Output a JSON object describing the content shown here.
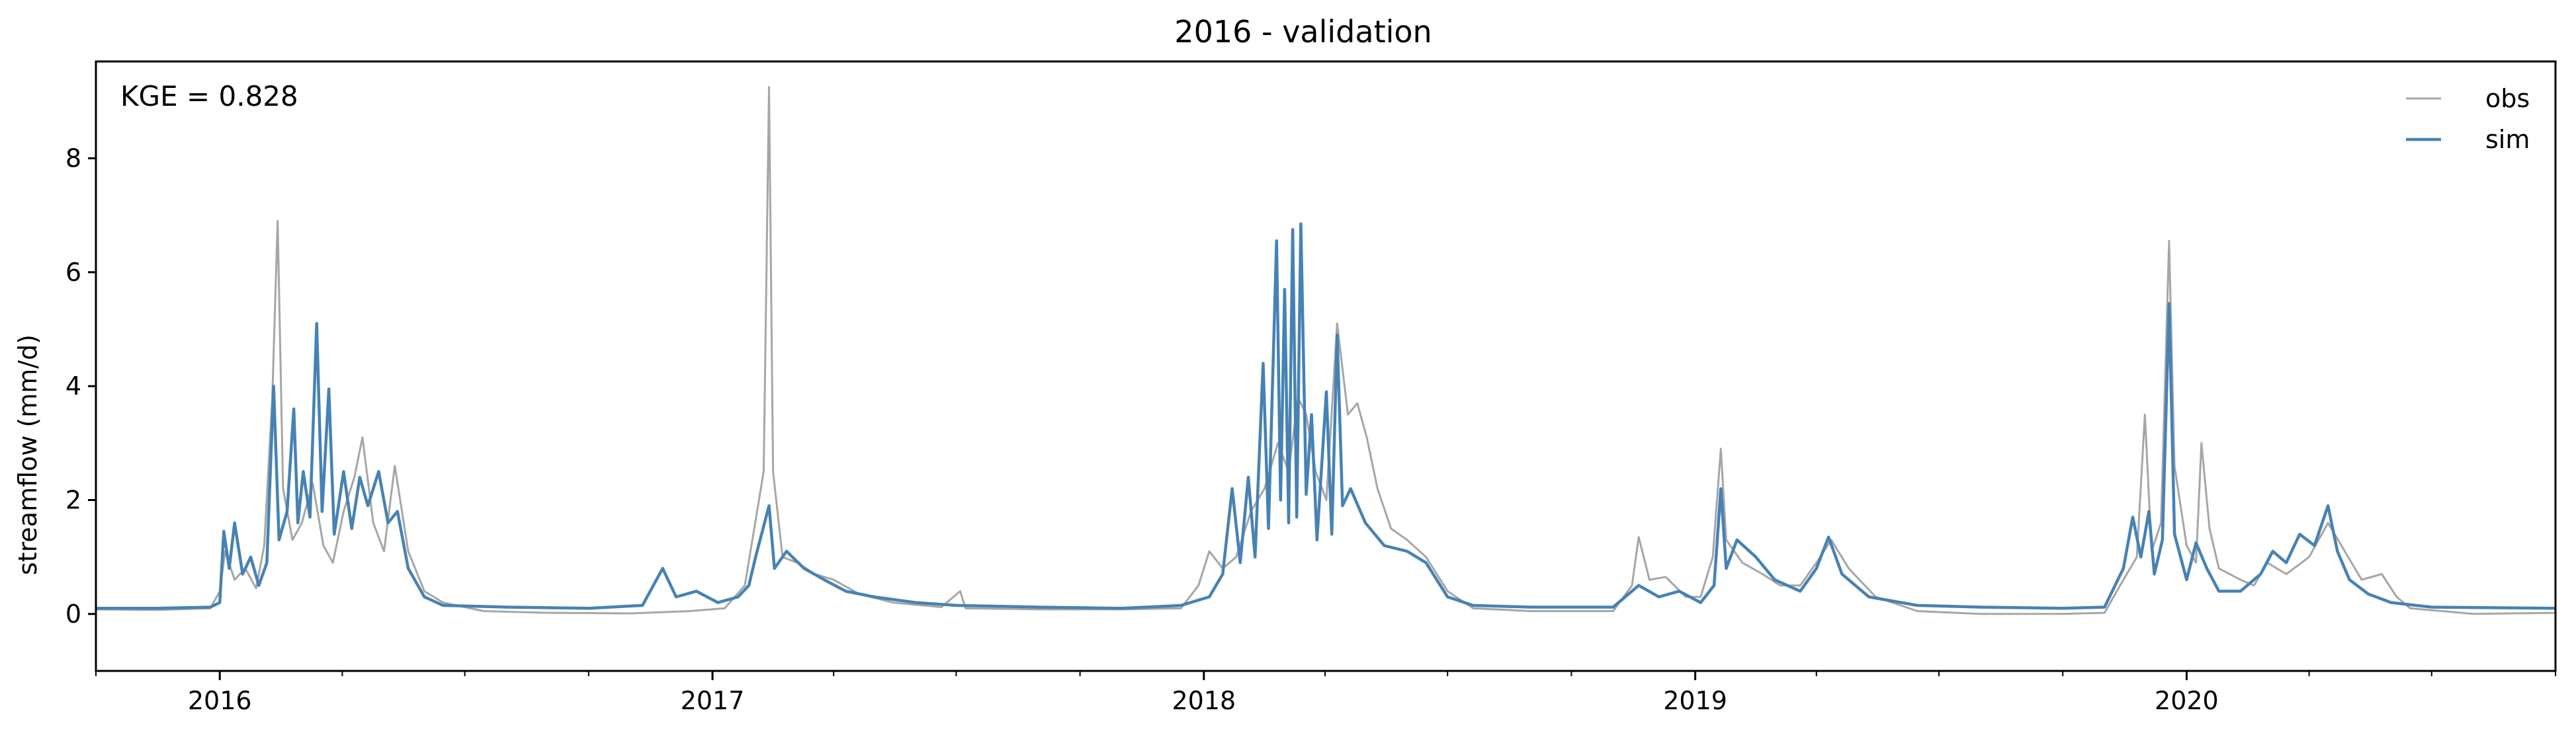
{
  "chart_data": {
    "type": "line",
    "title": "2016 - validation",
    "xlabel": "",
    "ylabel": "streamflow (mm/d)",
    "xlim": [
      "2015-10-01",
      "2020-10-01"
    ],
    "ylim": [
      -1,
      9.7
    ],
    "yticks": [
      0,
      2,
      4,
      6,
      8
    ],
    "xticks": [
      {
        "date": "2016-01-01",
        "label": "2016"
      },
      {
        "date": "2017-01-01",
        "label": "2017"
      },
      {
        "date": "2018-01-01",
        "label": "2018"
      },
      {
        "date": "2019-01-01",
        "label": "2019"
      },
      {
        "date": "2020-01-01",
        "label": "2020"
      }
    ],
    "minor_xticks": "quarterly",
    "grid": false,
    "legend": {
      "position": "top-right"
    },
    "annotation": "KGE = 0.828",
    "series": [
      {
        "name": "obs",
        "color": "#a6a6a6",
        "points": [
          [
            "2015-10-01",
            0.08
          ],
          [
            "2015-11-15",
            0.07
          ],
          [
            "2015-12-25",
            0.1
          ],
          [
            "2016-01-01",
            0.4
          ],
          [
            "2016-01-05",
            1.1
          ],
          [
            "2016-01-12",
            0.6
          ],
          [
            "2016-01-20",
            0.8
          ],
          [
            "2016-01-28",
            0.45
          ],
          [
            "2016-02-03",
            1.2
          ],
          [
            "2016-02-09",
            3.8
          ],
          [
            "2016-02-13",
            6.9
          ],
          [
            "2016-02-17",
            2.2
          ],
          [
            "2016-02-24",
            1.3
          ],
          [
            "2016-03-02",
            1.6
          ],
          [
            "2016-03-10",
            2.3
          ],
          [
            "2016-03-18",
            1.2
          ],
          [
            "2016-03-25",
            0.9
          ],
          [
            "2016-04-02",
            1.8
          ],
          [
            "2016-04-10",
            2.4
          ],
          [
            "2016-04-16",
            3.1
          ],
          [
            "2016-04-24",
            1.6
          ],
          [
            "2016-05-02",
            1.1
          ],
          [
            "2016-05-10",
            2.6
          ],
          [
            "2016-05-20",
            1.1
          ],
          [
            "2016-06-01",
            0.4
          ],
          [
            "2016-06-15",
            0.2
          ],
          [
            "2016-07-15",
            0.05
          ],
          [
            "2016-09-01",
            0.02
          ],
          [
            "2016-11-01",
            0.01
          ],
          [
            "2016-12-15",
            0.05
          ],
          [
            "2017-01-10",
            0.1
          ],
          [
            "2017-01-25",
            0.5
          ],
          [
            "2017-02-08",
            2.5
          ],
          [
            "2017-02-12",
            9.25
          ],
          [
            "2017-02-15",
            2.5
          ],
          [
            "2017-02-22",
            1.0
          ],
          [
            "2017-03-05",
            0.9
          ],
          [
            "2017-03-18",
            0.7
          ],
          [
            "2017-04-01",
            0.6
          ],
          [
            "2017-04-20",
            0.35
          ],
          [
            "2017-05-15",
            0.2
          ],
          [
            "2017-06-20",
            0.12
          ],
          [
            "2017-07-04",
            0.4
          ],
          [
            "2017-07-08",
            0.1
          ],
          [
            "2017-09-01",
            0.08
          ],
          [
            "2017-11-01",
            0.08
          ],
          [
            "2017-12-15",
            0.1
          ],
          [
            "2017-12-28",
            0.5
          ],
          [
            "2018-01-05",
            1.1
          ],
          [
            "2018-01-15",
            0.8
          ],
          [
            "2018-01-25",
            1.0
          ],
          [
            "2018-02-05",
            1.8
          ],
          [
            "2018-02-15",
            2.2
          ],
          [
            "2018-02-25",
            3.0
          ],
          [
            "2018-03-05",
            2.5
          ],
          [
            "2018-03-12",
            3.8
          ],
          [
            "2018-03-18",
            3.5
          ],
          [
            "2018-03-25",
            2.5
          ],
          [
            "2018-04-02",
            2.0
          ],
          [
            "2018-04-10",
            5.1
          ],
          [
            "2018-04-18",
            3.5
          ],
          [
            "2018-04-25",
            3.7
          ],
          [
            "2018-05-02",
            3.1
          ],
          [
            "2018-05-10",
            2.2
          ],
          [
            "2018-05-20",
            1.5
          ],
          [
            "2018-06-01",
            1.3
          ],
          [
            "2018-06-15",
            1.0
          ],
          [
            "2018-07-01",
            0.4
          ],
          [
            "2018-07-20",
            0.1
          ],
          [
            "2018-09-01",
            0.05
          ],
          [
            "2018-11-01",
            0.05
          ],
          [
            "2018-11-15",
            0.5
          ],
          [
            "2018-11-20",
            1.35
          ],
          [
            "2018-11-28",
            0.6
          ],
          [
            "2018-12-10",
            0.65
          ],
          [
            "2018-12-25",
            0.3
          ],
          [
            "2019-01-05",
            0.3
          ],
          [
            "2019-01-14",
            1.0
          ],
          [
            "2019-01-20",
            2.9
          ],
          [
            "2019-01-24",
            1.3
          ],
          [
            "2019-02-05",
            0.9
          ],
          [
            "2019-02-20",
            0.7
          ],
          [
            "2019-03-05",
            0.5
          ],
          [
            "2019-03-20",
            0.5
          ],
          [
            "2019-04-01",
            0.9
          ],
          [
            "2019-04-12",
            1.3
          ],
          [
            "2019-04-25",
            0.8
          ],
          [
            "2019-05-15",
            0.3
          ],
          [
            "2019-06-15",
            0.05
          ],
          [
            "2019-08-01",
            0.0
          ],
          [
            "2019-10-01",
            0.0
          ],
          [
            "2019-11-01",
            0.02
          ],
          [
            "2019-11-15",
            0.6
          ],
          [
            "2019-11-25",
            1.0
          ],
          [
            "2019-12-01",
            3.5
          ],
          [
            "2019-12-06",
            1.1
          ],
          [
            "2019-12-13",
            1.6
          ],
          [
            "2019-12-19",
            6.55
          ],
          [
            "2019-12-23",
            2.6
          ],
          [
            "2020-01-01",
            1.2
          ],
          [
            "2020-01-08",
            0.9
          ],
          [
            "2020-01-12",
            3.0
          ],
          [
            "2020-01-18",
            1.5
          ],
          [
            "2020-01-25",
            0.8
          ],
          [
            "2020-02-10",
            0.6
          ],
          [
            "2020-02-20",
            0.5
          ],
          [
            "2020-03-01",
            0.9
          ],
          [
            "2020-03-15",
            0.7
          ],
          [
            "2020-04-01",
            1.0
          ],
          [
            "2020-04-15",
            1.6
          ],
          [
            "2020-04-25",
            1.2
          ],
          [
            "2020-05-10",
            0.6
          ],
          [
            "2020-05-25",
            0.7
          ],
          [
            "2020-06-05",
            0.3
          ],
          [
            "2020-06-15",
            0.1
          ],
          [
            "2020-08-01",
            0.0
          ],
          [
            "2020-10-01",
            0.02
          ]
        ]
      },
      {
        "name": "sim",
        "color": "#4682b4",
        "points": [
          [
            "2015-10-01",
            0.1
          ],
          [
            "2015-11-15",
            0.1
          ],
          [
            "2015-12-25",
            0.12
          ],
          [
            "2016-01-01",
            0.2
          ],
          [
            "2016-01-04",
            1.45
          ],
          [
            "2016-01-08",
            0.8
          ],
          [
            "2016-01-12",
            1.6
          ],
          [
            "2016-01-18",
            0.7
          ],
          [
            "2016-01-24",
            1.0
          ],
          [
            "2016-01-30",
            0.5
          ],
          [
            "2016-02-05",
            0.9
          ],
          [
            "2016-02-10",
            4.0
          ],
          [
            "2016-02-14",
            1.3
          ],
          [
            "2016-02-20",
            1.8
          ],
          [
            "2016-02-25",
            3.6
          ],
          [
            "2016-02-28",
            1.6
          ],
          [
            "2016-03-03",
            2.5
          ],
          [
            "2016-03-08",
            1.7
          ],
          [
            "2016-03-13",
            5.1
          ],
          [
            "2016-03-17",
            1.8
          ],
          [
            "2016-03-22",
            3.95
          ],
          [
            "2016-03-26",
            1.4
          ],
          [
            "2016-04-02",
            2.5
          ],
          [
            "2016-04-08",
            1.5
          ],
          [
            "2016-04-14",
            2.4
          ],
          [
            "2016-04-20",
            1.9
          ],
          [
            "2016-04-28",
            2.5
          ],
          [
            "2016-05-05",
            1.6
          ],
          [
            "2016-05-12",
            1.8
          ],
          [
            "2016-05-20",
            0.8
          ],
          [
            "2016-06-01",
            0.3
          ],
          [
            "2016-06-15",
            0.15
          ],
          [
            "2016-08-01",
            0.12
          ],
          [
            "2016-10-01",
            0.1
          ],
          [
            "2016-11-10",
            0.15
          ],
          [
            "2016-11-25",
            0.8
          ],
          [
            "2016-12-05",
            0.3
          ],
          [
            "2016-12-20",
            0.4
          ],
          [
            "2017-01-05",
            0.2
          ],
          [
            "2017-01-20",
            0.3
          ],
          [
            "2017-01-28",
            0.5
          ],
          [
            "2017-02-02",
            1.0
          ],
          [
            "2017-02-12",
            1.9
          ],
          [
            "2017-02-16",
            0.8
          ],
          [
            "2017-02-25",
            1.1
          ],
          [
            "2017-03-10",
            0.8
          ],
          [
            "2017-03-25",
            0.6
          ],
          [
            "2017-04-10",
            0.4
          ],
          [
            "2017-05-01",
            0.3
          ],
          [
            "2017-06-01",
            0.2
          ],
          [
            "2017-07-01",
            0.15
          ],
          [
            "2017-09-01",
            0.12
          ],
          [
            "2017-11-01",
            0.1
          ],
          [
            "2017-12-15",
            0.15
          ],
          [
            "2018-01-05",
            0.3
          ],
          [
            "2018-01-15",
            0.7
          ],
          [
            "2018-01-22",
            2.2
          ],
          [
            "2018-01-28",
            0.9
          ],
          [
            "2018-02-03",
            2.4
          ],
          [
            "2018-02-08",
            1.0
          ],
          [
            "2018-02-14",
            4.4
          ],
          [
            "2018-02-18",
            1.5
          ],
          [
            "2018-02-24",
            6.55
          ],
          [
            "2018-02-27",
            2.0
          ],
          [
            "2018-03-02",
            5.7
          ],
          [
            "2018-03-05",
            1.6
          ],
          [
            "2018-03-08",
            6.75
          ],
          [
            "2018-03-11",
            1.7
          ],
          [
            "2018-03-14",
            6.85
          ],
          [
            "2018-03-18",
            2.1
          ],
          [
            "2018-03-22",
            3.5
          ],
          [
            "2018-03-26",
            1.3
          ],
          [
            "2018-04-02",
            3.9
          ],
          [
            "2018-04-06",
            1.4
          ],
          [
            "2018-04-10",
            4.9
          ],
          [
            "2018-04-14",
            1.9
          ],
          [
            "2018-04-20",
            2.2
          ],
          [
            "2018-05-01",
            1.6
          ],
          [
            "2018-05-15",
            1.2
          ],
          [
            "2018-06-01",
            1.1
          ],
          [
            "2018-06-15",
            0.9
          ],
          [
            "2018-07-01",
            0.3
          ],
          [
            "2018-07-20",
            0.15
          ],
          [
            "2018-09-01",
            0.12
          ],
          [
            "2018-11-01",
            0.12
          ],
          [
            "2018-11-20",
            0.5
          ],
          [
            "2018-12-05",
            0.3
          ],
          [
            "2018-12-20",
            0.4
          ],
          [
            "2019-01-05",
            0.2
          ],
          [
            "2019-01-15",
            0.5
          ],
          [
            "2019-01-20",
            2.2
          ],
          [
            "2019-01-24",
            0.8
          ],
          [
            "2019-02-01",
            1.3
          ],
          [
            "2019-02-15",
            1.0
          ],
          [
            "2019-03-01",
            0.6
          ],
          [
            "2019-03-20",
            0.4
          ],
          [
            "2019-04-01",
            0.8
          ],
          [
            "2019-04-10",
            1.35
          ],
          [
            "2019-04-20",
            0.7
          ],
          [
            "2019-05-10",
            0.3
          ],
          [
            "2019-06-15",
            0.15
          ],
          [
            "2019-08-01",
            0.12
          ],
          [
            "2019-10-01",
            0.1
          ],
          [
            "2019-11-01",
            0.12
          ],
          [
            "2019-11-15",
            0.8
          ],
          [
            "2019-11-22",
            1.7
          ],
          [
            "2019-11-28",
            1.0
          ],
          [
            "2019-12-04",
            1.8
          ],
          [
            "2019-12-08",
            0.7
          ],
          [
            "2019-12-14",
            1.3
          ],
          [
            "2019-12-19",
            5.45
          ],
          [
            "2019-12-23",
            1.4
          ],
          [
            "2020-01-01",
            0.6
          ],
          [
            "2020-01-08",
            1.25
          ],
          [
            "2020-01-16",
            0.8
          ],
          [
            "2020-01-25",
            0.4
          ],
          [
            "2020-02-10",
            0.4
          ],
          [
            "2020-02-25",
            0.7
          ],
          [
            "2020-03-05",
            1.1
          ],
          [
            "2020-03-15",
            0.9
          ],
          [
            "2020-03-25",
            1.4
          ],
          [
            "2020-04-05",
            1.2
          ],
          [
            "2020-04-15",
            1.9
          ],
          [
            "2020-04-22",
            1.1
          ],
          [
            "2020-05-01",
            0.6
          ],
          [
            "2020-05-15",
            0.35
          ],
          [
            "2020-06-01",
            0.2
          ],
          [
            "2020-07-01",
            0.12
          ],
          [
            "2020-10-01",
            0.1
          ]
        ]
      }
    ]
  }
}
